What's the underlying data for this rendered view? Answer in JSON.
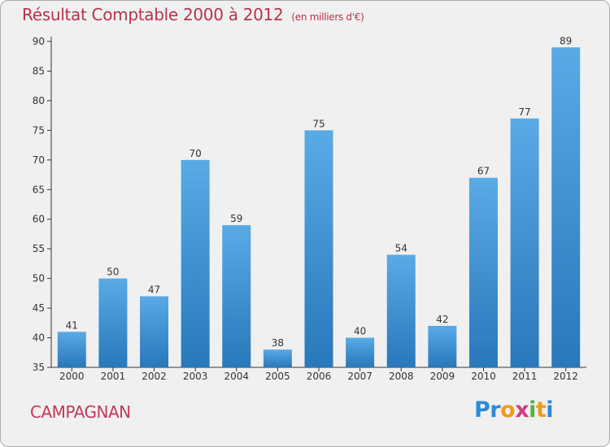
{
  "header": {
    "title": "Résultat Comptable 2000 à 2012",
    "subtitle": "(en milliers d'€)"
  },
  "commune": "CAMPAGNAN",
  "logo": {
    "letters": [
      {
        "char": "P",
        "color": "#2b8ad4"
      },
      {
        "char": "r",
        "color": "#2b8ad4"
      },
      {
        "char": "o",
        "color": "#f19a1c"
      },
      {
        "char": "x",
        "color": "#d63a86"
      },
      {
        "char": "i",
        "color": "#55b43e"
      },
      {
        "char": "t",
        "color": "#f19a1c"
      },
      {
        "char": "i",
        "color": "#2b8ad4"
      }
    ]
  },
  "chart_data": {
    "type": "bar",
    "title": "Résultat Comptable 2000 à 2012",
    "categories": [
      "2000",
      "2001",
      "2002",
      "2003",
      "2004",
      "2005",
      "2006",
      "2007",
      "2008",
      "2009",
      "2010",
      "2011",
      "2012"
    ],
    "values": [
      41,
      50,
      47,
      70,
      59,
      38,
      75,
      40,
      54,
      42,
      67,
      77,
      89
    ],
    "ylim": [
      35,
      90
    ],
    "yticks": [
      35,
      40,
      45,
      50,
      55,
      60,
      65,
      70,
      75,
      80,
      85,
      90
    ],
    "grid": false,
    "data_labels": true,
    "colors": {
      "bar_top": "#5aaae6",
      "bar_bottom": "#2878bb",
      "axis": "#333333"
    }
  }
}
